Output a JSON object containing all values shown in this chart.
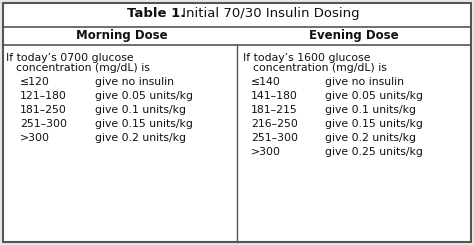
{
  "title_bold": "Table 1.",
  "title_regular": " Initial 70/30 Insulin Dosing",
  "col_headers": [
    "Morning Dose",
    "Evening Dose"
  ],
  "morning_intro": [
    "If today’s 0700 glucose",
    "concentration (mg/dL) is"
  ],
  "evening_intro": [
    "If today’s 1600 glucose",
    "concentration (mg/dL) is"
  ],
  "morning_rows": [
    [
      "≤120",
      "give no insulin"
    ],
    [
      "121–180",
      "give 0.05 units/kg"
    ],
    [
      "181–250",
      "give 0.1 units/kg"
    ],
    [
      "251–300",
      "give 0.15 units/kg"
    ],
    [
      ">300",
      "give 0.2 units/kg"
    ]
  ],
  "evening_rows": [
    [
      "≤140",
      "give no insulin"
    ],
    [
      "141–180",
      "give 0.05 units/kg"
    ],
    [
      "181–215",
      "give 0.1 units/kg"
    ],
    [
      "216–250",
      "give 0.15 units/kg"
    ],
    [
      "251–300",
      "give 0.2 units/kg"
    ],
    [
      ">300",
      "give 0.25 units/kg"
    ]
  ],
  "bg_color": "#e8e8e8",
  "border_color": "#555555",
  "text_color": "#111111"
}
